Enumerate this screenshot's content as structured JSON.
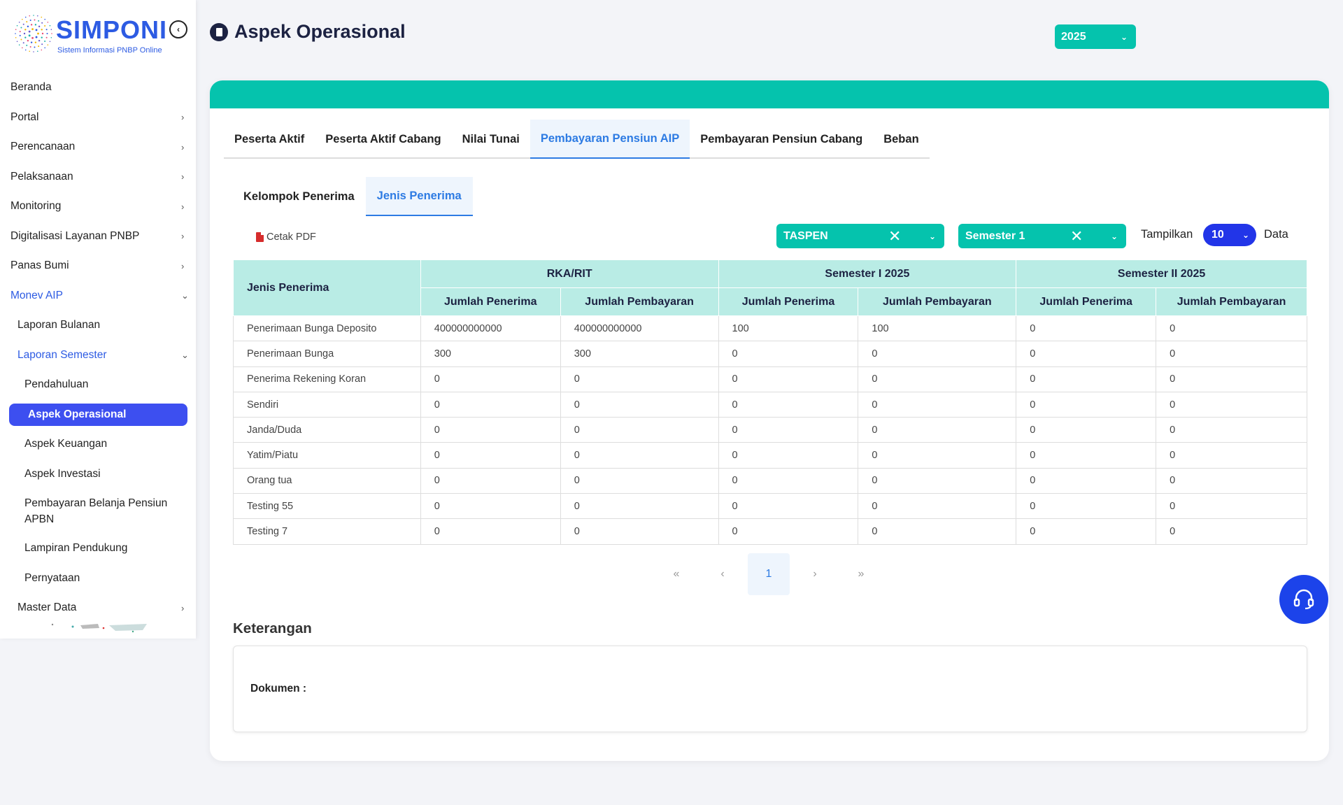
{
  "brand": {
    "name": "SIMPONI",
    "subtitle": "Sistem Informasi PNBP Online"
  },
  "sidebar": {
    "items": [
      {
        "label": "Beranda",
        "level": 0,
        "chevron": ""
      },
      {
        "label": "Portal",
        "level": 0,
        "chevron": "›"
      },
      {
        "label": "Perencanaan",
        "level": 0,
        "chevron": "›"
      },
      {
        "label": "Pelaksanaan",
        "level": 0,
        "chevron": "›"
      },
      {
        "label": "Monitoring",
        "level": 0,
        "chevron": "›"
      },
      {
        "label": "Digitalisasi Layanan PNBP",
        "level": 0,
        "chevron": "›"
      },
      {
        "label": "Panas Bumi",
        "level": 0,
        "chevron": "›"
      },
      {
        "label": "Monev AIP",
        "level": 0,
        "chevron": "⌄",
        "open": true
      },
      {
        "label": "Laporan Bulanan",
        "level": 1,
        "chevron": ""
      },
      {
        "label": "Laporan Semester",
        "level": 1,
        "chevron": "⌄",
        "open": true
      },
      {
        "label": "Pendahuluan",
        "level": 2,
        "chevron": ""
      },
      {
        "label": "Aspek Operasional",
        "level": 2,
        "chevron": "",
        "active": true
      },
      {
        "label": "Aspek Keuangan",
        "level": 2,
        "chevron": ""
      },
      {
        "label": "Aspek Investasi",
        "level": 2,
        "chevron": ""
      },
      {
        "label": "Pembayaran Belanja Pensiun APBN",
        "level": 2,
        "chevron": "",
        "tall": true
      },
      {
        "label": "Lampiran Pendukung",
        "level": 2,
        "chevron": ""
      },
      {
        "label": "Pernyataan",
        "level": 2,
        "chevron": ""
      },
      {
        "label": "Master Data",
        "level": 1,
        "chevron": "›"
      }
    ]
  },
  "header": {
    "title": "Aspek Operasional",
    "year": "2025"
  },
  "tabs_main": [
    {
      "label": "Peserta Aktif"
    },
    {
      "label": "Peserta Aktif Cabang"
    },
    {
      "label": "Nilai Tunai"
    },
    {
      "label": "Pembayaran Pensiun AIP",
      "active": true
    },
    {
      "label": "Pembayaran Pensiun Cabang"
    },
    {
      "label": "Beban"
    }
  ],
  "tabs_sub": [
    {
      "label": "Kelompok Penerima"
    },
    {
      "label": "Jenis Penerima",
      "active": true
    }
  ],
  "toolbar": {
    "pdf_label": "Cetak PDF",
    "filter1": "TASPEN",
    "filter2": "Semester 1",
    "show_label": "Tampilkan",
    "show_value": "10",
    "data_label": "Data"
  },
  "table": {
    "row_header": "Jenis Penerima",
    "groups": [
      "RKA/RIT",
      "Semester I 2025",
      "Semester II 2025"
    ],
    "subcols": [
      "Jumlah Penerima",
      "Jumlah Pembayaran",
      "Jumlah Penerima",
      "Jumlah Pembayaran",
      "Jumlah Penerima",
      "Jumlah Pembayaran"
    ],
    "rows": [
      [
        "Penerimaan Bunga Deposito",
        "400000000000",
        "400000000000",
        "100",
        "100",
        "0",
        "0"
      ],
      [
        "Penerimaan Bunga",
        "300",
        "300",
        "0",
        "0",
        "0",
        "0"
      ],
      [
        "Penerima Rekening Koran",
        "0",
        "0",
        "0",
        "0",
        "0",
        "0"
      ],
      [
        "Sendiri",
        "0",
        "0",
        "0",
        "0",
        "0",
        "0"
      ],
      [
        "Janda/Duda",
        "0",
        "0",
        "0",
        "0",
        "0",
        "0"
      ],
      [
        "Yatim/Piatu",
        "0",
        "0",
        "0",
        "0",
        "0",
        "0"
      ],
      [
        "Orang tua",
        "0",
        "0",
        "0",
        "0",
        "0",
        "0"
      ],
      [
        "Testing 55",
        "0",
        "0",
        "0",
        "0",
        "0",
        "0"
      ],
      [
        "Testing 7",
        "0",
        "0",
        "0",
        "0",
        "0",
        "0"
      ]
    ]
  },
  "pagination": {
    "first": "«",
    "prev": "‹",
    "current": "1",
    "next": "›",
    "last": "»"
  },
  "notes": {
    "title": "Keterangan",
    "doc_label": "Dokumen :"
  },
  "colors": {
    "teal": "#05c3ad",
    "blue": "#3d4ff0",
    "link": "#2d7be3",
    "header_teal": "#b9ece5"
  },
  "icons": {
    "back": "chevron-left-circle-icon",
    "help": "headset-icon",
    "pdf": "file-pdf-icon",
    "page": "clipboard-icon"
  }
}
